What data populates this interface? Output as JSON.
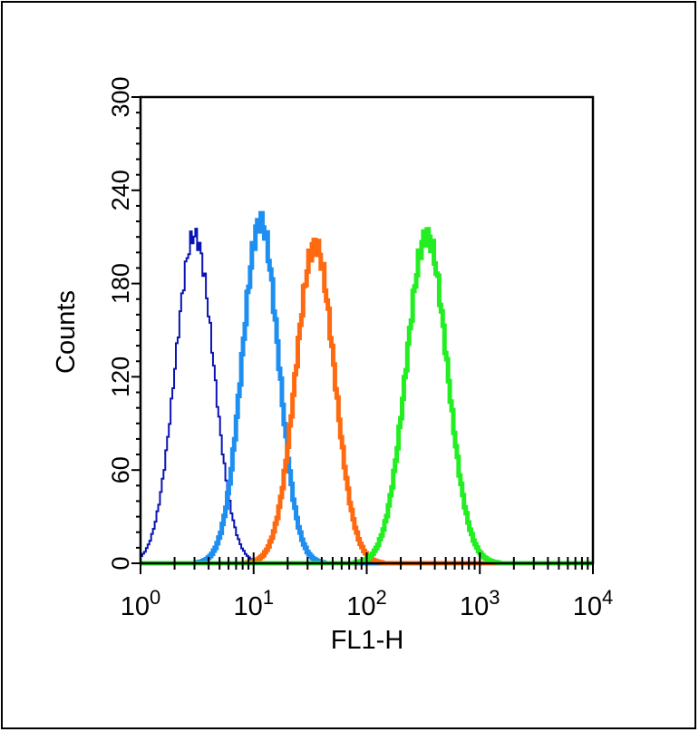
{
  "chart_data": {
    "type": "histogram",
    "xscale": "log",
    "xlim": [
      1,
      10000
    ],
    "ylim": [
      0,
      300
    ],
    "xlabel": "FL1-H",
    "ylabel": "Counts",
    "y_ticks": [
      0,
      60,
      120,
      180,
      240,
      300
    ],
    "x_ticks": [
      {
        "base": "10",
        "exp": "0"
      },
      {
        "base": "10",
        "exp": "1"
      },
      {
        "base": "10",
        "exp": "2"
      },
      {
        "base": "10",
        "exp": "3"
      },
      {
        "base": "10",
        "exp": "4"
      }
    ],
    "series": [
      {
        "color": "#0a14b4",
        "peak_x": 3.0,
        "peak_y": 211,
        "log_sigma": 0.17,
        "stroke": 2
      },
      {
        "color": "#1e8ff0",
        "peak_x": 11.5,
        "peak_y": 220,
        "log_sigma": 0.16,
        "stroke": 5
      },
      {
        "color": "#ff6a10",
        "peak_x": 35,
        "peak_y": 205,
        "log_sigma": 0.17,
        "stroke": 5
      },
      {
        "color": "#22ee22",
        "peak_x": 340,
        "peak_y": 211,
        "log_sigma": 0.18,
        "stroke": 5
      }
    ]
  }
}
